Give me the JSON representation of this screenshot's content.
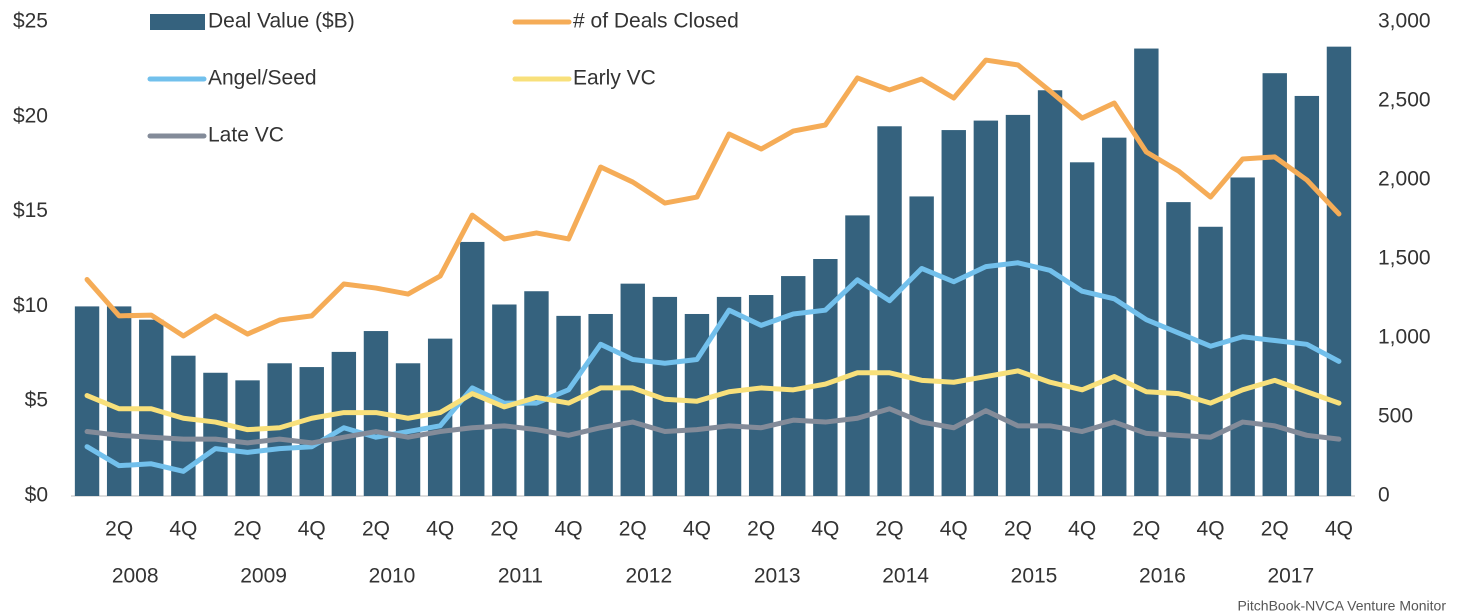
{
  "chart_data": {
    "type": "combo",
    "categories": [
      null,
      "2Q",
      null,
      "4Q",
      null,
      "2Q",
      null,
      "4Q",
      null,
      "2Q",
      null,
      "4Q",
      null,
      "2Q",
      null,
      "4Q",
      null,
      "2Q",
      null,
      "4Q",
      null,
      "2Q",
      null,
      "4Q",
      null,
      "2Q",
      null,
      "4Q",
      null,
      "2Q",
      null,
      "4Q",
      null,
      "2Q",
      null,
      "4Q",
      null,
      "2Q",
      null,
      "4Q"
    ],
    "years": [
      "2008",
      "2009",
      "2010",
      "2011",
      "2012",
      "2013",
      "2014",
      "2015",
      "2016",
      "2017"
    ],
    "series": [
      {
        "name": "Deal Value ($B)",
        "type": "bar",
        "color": "#35627e",
        "values": [
          10.0,
          10.0,
          9.3,
          7.4,
          6.5,
          6.1,
          7.0,
          6.8,
          7.6,
          8.7,
          7.0,
          8.3,
          13.4,
          10.1,
          10.8,
          9.5,
          9.6,
          11.2,
          10.5,
          9.6,
          10.5,
          10.6,
          11.6,
          12.5,
          14.8,
          19.5,
          15.8,
          19.3,
          19.8,
          20.1,
          21.4,
          17.6,
          18.9,
          23.6,
          15.5,
          14.2,
          16.8,
          22.3,
          21.1,
          23.7
        ]
      },
      {
        "name": "# of Deals Closed",
        "type": "line",
        "axis": "y2",
        "color": "#f5ac57",
        "values": [
          1370,
          1140,
          1145,
          1013,
          1140,
          1025,
          1114,
          1140,
          1342,
          1316,
          1278,
          1392,
          1778,
          1627,
          1665,
          1627,
          2082,
          1987,
          1854,
          1892,
          2291,
          2196,
          2310,
          2348,
          2646,
          2570,
          2639,
          2519,
          2759,
          2728,
          2563,
          2392,
          2487,
          2177,
          2057,
          1892,
          2133,
          2146,
          2000,
          1785
        ]
      },
      {
        "name": "Angel/Seed",
        "type": "line",
        "color": "#72c0ec",
        "values": [
          2.6,
          1.6,
          1.7,
          1.3,
          2.5,
          2.3,
          2.5,
          2.6,
          3.6,
          3.1,
          3.4,
          3.7,
          5.7,
          4.9,
          4.9,
          5.6,
          8.0,
          7.2,
          7.0,
          7.2,
          9.8,
          9.0,
          9.6,
          9.8,
          11.4,
          10.3,
          12.0,
          11.3,
          12.1,
          12.3,
          11.9,
          10.8,
          10.4,
          9.3,
          8.6,
          7.9,
          8.4,
          8.2,
          8.0,
          7.1
        ]
      },
      {
        "name": "Early VC",
        "type": "line",
        "color": "#f8e07b",
        "values": [
          5.3,
          4.6,
          4.6,
          4.1,
          3.9,
          3.5,
          3.6,
          4.1,
          4.4,
          4.4,
          4.1,
          4.4,
          5.4,
          4.7,
          5.2,
          4.9,
          5.7,
          5.7,
          5.1,
          5.0,
          5.5,
          5.7,
          5.6,
          5.9,
          6.5,
          6.5,
          6.1,
          6.0,
          6.3,
          6.6,
          6.0,
          5.6,
          6.3,
          5.5,
          5.4,
          4.9,
          5.6,
          6.1,
          5.5,
          4.9
        ]
      },
      {
        "name": "Late VC",
        "type": "line",
        "color": "#838b99",
        "values": [
          3.4,
          3.2,
          3.1,
          3.0,
          3.0,
          2.8,
          3.0,
          2.8,
          3.1,
          3.4,
          3.1,
          3.4,
          3.6,
          3.7,
          3.5,
          3.2,
          3.6,
          3.9,
          3.4,
          3.5,
          3.7,
          3.6,
          4.0,
          3.9,
          4.1,
          4.6,
          3.9,
          3.6,
          4.5,
          3.7,
          3.7,
          3.4,
          3.9,
          3.3,
          3.2,
          3.1,
          3.9,
          3.7,
          3.2,
          3.0
        ]
      }
    ],
    "ylim": [
      0,
      25
    ],
    "yticks": [
      {
        "value": 0,
        "label": "$0"
      },
      {
        "value": 5,
        "label": "$5"
      },
      {
        "value": 10,
        "label": "$10"
      },
      {
        "value": 15,
        "label": "$15"
      },
      {
        "value": 20,
        "label": "$20"
      },
      {
        "value": 25,
        "label": "$25"
      }
    ],
    "y2lim": [
      0,
      3000
    ],
    "y2ticks": [
      0,
      500,
      {
        "value": 1000,
        "label": "1,000"
      },
      {
        "value": 1500,
        "label": "1,500"
      },
      {
        "value": 2000,
        "label": "2,000"
      },
      {
        "value": 2500,
        "label": "2,500"
      },
      {
        "value": 3000,
        "label": "3,000"
      }
    ],
    "source": "PitchBook-NVCA Venture Monitor"
  }
}
